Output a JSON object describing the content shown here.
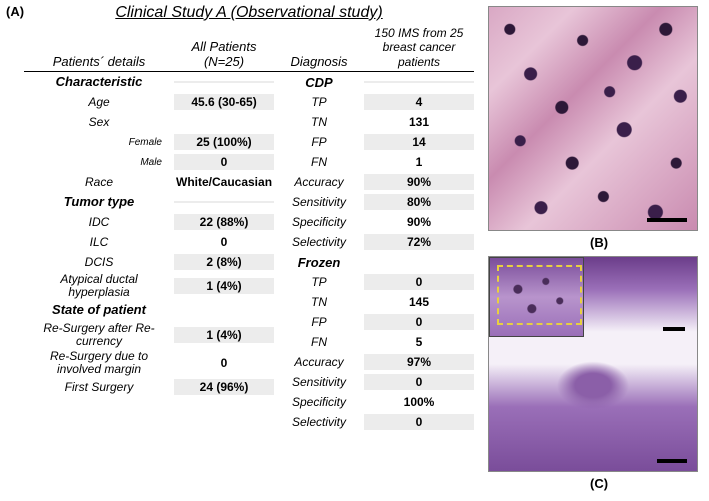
{
  "labels": {
    "A": "(A)",
    "B": "(B)",
    "C": "(C)"
  },
  "title": "Clinical Study A (Observational study)",
  "headers": {
    "col1": "Patients´ details",
    "col2": "All Patients (N=25)",
    "col3": "Diagnosis",
    "col4": "150 IMS from 25 breast cancer patients"
  },
  "left": {
    "characteristic": "Characteristic",
    "age_l": "Age",
    "age_v": "45.6 (30-65)",
    "sex_l": "Sex",
    "female_l": "Female",
    "female_v": "25 (100%)",
    "male_l": "Male",
    "male_v": "0",
    "race_l": "Race",
    "race_v": "White/Caucasian",
    "tumor": "Tumor type",
    "idc_l": "IDC",
    "idc_v": "22 (88%)",
    "ilc_l": "ILC",
    "ilc_v": "0",
    "dcis_l": "DCIS",
    "dcis_v": "2 (8%)",
    "adh_l": "Atypical ductal hyperplasia",
    "adh_v": "1 (4%)",
    "state": "State of patient",
    "resrec_l": "Re-Surgery after Re-currency",
    "resrec_v": "1 (4%)",
    "resmar_l": "Re-Surgery due to involved margin",
    "resmar_v": "0",
    "first_l": "First Surgery",
    "first_v": "24 (96%)"
  },
  "right": {
    "cdp": "CDP",
    "cdp_tp_l": "TP",
    "cdp_tp_v": "4",
    "cdp_tn_l": "TN",
    "cdp_tn_v": "131",
    "cdp_fp_l": "FP",
    "cdp_fp_v": "14",
    "cdp_fn_l": "FN",
    "cdp_fn_v": "1",
    "cdp_acc_l": "Accuracy",
    "cdp_acc_v": "90%",
    "cdp_sen_l": "Sensitivity",
    "cdp_sen_v": "80%",
    "cdp_spe_l": "Specificity",
    "cdp_spe_v": "90%",
    "cdp_sel_l": "Selectivity",
    "cdp_sel_v": "72%",
    "frozen": "Frozen",
    "frz_tp_l": "TP",
    "frz_tp_v": "0",
    "frz_tn_l": "TN",
    "frz_tn_v": "145",
    "frz_fp_l": "FP",
    "frz_fp_v": "0",
    "frz_fn_l": "FN",
    "frz_fn_v": "5",
    "frz_acc_l": "Accuracy",
    "frz_acc_v": "97%",
    "frz_sen_l": "Sensitivity",
    "frz_sen_v": "0",
    "frz_spe_l": "Specificity",
    "frz_spe_v": "100%",
    "frz_sel_l": "Selectivity",
    "frz_sel_v": "0"
  },
  "style": {
    "shade_bg": "#ececec",
    "text_color": "#000000",
    "title_fontsize": 16,
    "header_fontsize": 13,
    "body_fontsize": 12
  }
}
